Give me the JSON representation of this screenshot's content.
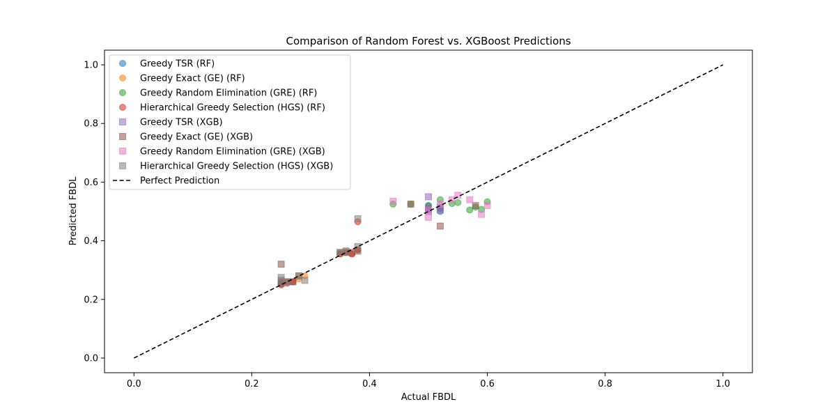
{
  "chart_data": {
    "type": "scatter",
    "title": "Comparison of Random Forest vs. XGBoost Predictions",
    "xlabel": "Actual FBDL",
    "ylabel": "Predicted FBDL",
    "xlim": [
      -0.05,
      1.05
    ],
    "ylim": [
      -0.05,
      1.05
    ],
    "xticks": [
      0.0,
      0.2,
      0.4,
      0.6,
      0.8,
      1.0
    ],
    "yticks": [
      0.0,
      0.2,
      0.4,
      0.6,
      0.8,
      1.0
    ],
    "xtick_labels": [
      "0.0",
      "0.2",
      "0.4",
      "0.6",
      "0.8",
      "1.0"
    ],
    "ytick_labels": [
      "0.0",
      "0.2",
      "0.4",
      "0.6",
      "0.8",
      "1.0"
    ],
    "grid": false,
    "legend_position": "top-left",
    "series": [
      {
        "name": "Greedy TSR (RF)",
        "marker": "circle",
        "color": "#1f77b4",
        "points": [
          [
            0.5,
            0.52
          ],
          [
            0.5,
            0.51
          ],
          [
            0.52,
            0.51
          ],
          [
            0.5,
            0.505
          ],
          [
            0.52,
            0.5
          ]
        ]
      },
      {
        "name": "Greedy Exact (GE) (RF)",
        "marker": "circle",
        "color": "#ff7f0e",
        "points": [
          [
            0.25,
            0.25
          ],
          [
            0.26,
            0.26
          ],
          [
            0.27,
            0.26
          ],
          [
            0.28,
            0.27
          ],
          [
            0.29,
            0.28
          ],
          [
            0.35,
            0.355
          ],
          [
            0.36,
            0.36
          ],
          [
            0.37,
            0.355
          ],
          [
            0.38,
            0.37
          ],
          [
            0.25,
            0.255
          ]
        ]
      },
      {
        "name": "Greedy Random Elimination (GRE) (RF)",
        "marker": "circle",
        "color": "#2ca02c",
        "points": [
          [
            0.44,
            0.525
          ],
          [
            0.47,
            0.525
          ],
          [
            0.5,
            0.52
          ],
          [
            0.52,
            0.54
          ],
          [
            0.54,
            0.527
          ],
          [
            0.55,
            0.53
          ],
          [
            0.57,
            0.505
          ],
          [
            0.58,
            0.515
          ],
          [
            0.59,
            0.507
          ],
          [
            0.6,
            0.533
          ],
          [
            0.52,
            0.51
          ]
        ]
      },
      {
        "name": "Hierarchical Greedy Selection (HGS) (RF)",
        "marker": "circle",
        "color": "#d62728",
        "points": [
          [
            0.25,
            0.25
          ],
          [
            0.26,
            0.255
          ],
          [
            0.27,
            0.26
          ],
          [
            0.35,
            0.355
          ],
          [
            0.36,
            0.36
          ],
          [
            0.37,
            0.355
          ],
          [
            0.38,
            0.37
          ],
          [
            0.38,
            0.465
          ],
          [
            0.25,
            0.26
          ]
        ]
      },
      {
        "name": "Greedy TSR (XGB)",
        "marker": "square",
        "color": "#9467bd",
        "points": [
          [
            0.5,
            0.55
          ],
          [
            0.5,
            0.51
          ],
          [
            0.52,
            0.505
          ],
          [
            0.52,
            0.515
          ],
          [
            0.5,
            0.5
          ]
        ]
      },
      {
        "name": "Greedy Exact (GE) (XGB)",
        "marker": "square",
        "color": "#8c564b",
        "points": [
          [
            0.25,
            0.32
          ],
          [
            0.25,
            0.255
          ],
          [
            0.26,
            0.26
          ],
          [
            0.27,
            0.26
          ],
          [
            0.28,
            0.28
          ],
          [
            0.35,
            0.36
          ],
          [
            0.36,
            0.365
          ],
          [
            0.37,
            0.36
          ],
          [
            0.38,
            0.365
          ],
          [
            0.52,
            0.45
          ],
          [
            0.47,
            0.525
          ],
          [
            0.58,
            0.52
          ],
          [
            0.25,
            0.265
          ]
        ]
      },
      {
        "name": "Greedy Random Elimination (GRE) (XGB)",
        "marker": "square",
        "color": "#e377c2",
        "points": [
          [
            0.44,
            0.535
          ],
          [
            0.5,
            0.48
          ],
          [
            0.5,
            0.505
          ],
          [
            0.52,
            0.525
          ],
          [
            0.55,
            0.555
          ],
          [
            0.57,
            0.54
          ],
          [
            0.59,
            0.49
          ],
          [
            0.6,
            0.52
          ],
          [
            0.54,
            0.54
          ]
        ]
      },
      {
        "name": "Hierarchical Greedy Selection (HGS) (XGB)",
        "marker": "square",
        "color": "#7f7f7f",
        "points": [
          [
            0.25,
            0.275
          ],
          [
            0.26,
            0.26
          ],
          [
            0.28,
            0.28
          ],
          [
            0.29,
            0.265
          ],
          [
            0.35,
            0.36
          ],
          [
            0.36,
            0.36
          ],
          [
            0.38,
            0.475
          ],
          [
            0.38,
            0.38
          ],
          [
            0.25,
            0.255
          ]
        ]
      }
    ],
    "reference_line": {
      "name": "Perfect Prediction",
      "color": "#000000",
      "style": "dashed",
      "points": [
        [
          0.0,
          0.0
        ],
        [
          1.0,
          1.0
        ]
      ]
    }
  }
}
